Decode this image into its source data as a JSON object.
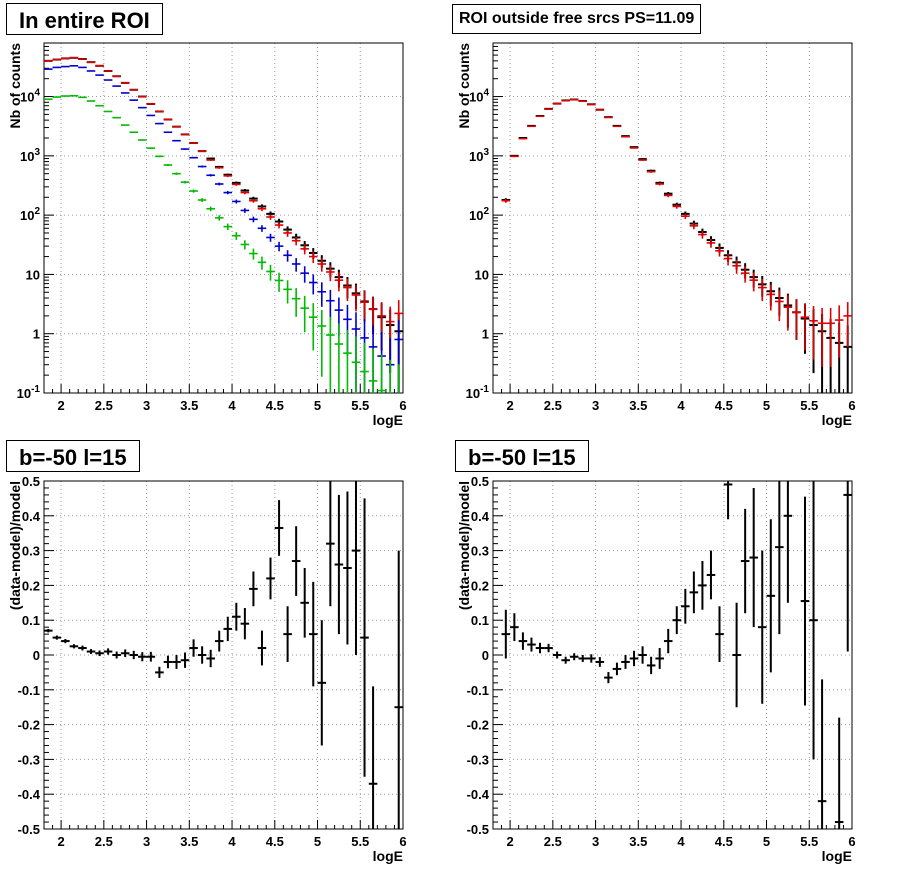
{
  "panels": {
    "top_left": {
      "title": "In entire ROI"
    },
    "top_right": {
      "title": "ROI outside free srcs PS=11.09"
    },
    "bottom_left": {
      "title": "b=-50 l=15"
    },
    "bottom_right": {
      "title": "b=-50 l=15"
    }
  },
  "colors": {
    "black": "#000000",
    "red": "#e00000",
    "blue": "#0000cc",
    "green": "#00bb00",
    "grid": "#999999"
  },
  "chart_data": [
    {
      "id": "top_left",
      "type": "scatter",
      "title": "In entire ROI",
      "xlabel": "logE",
      "ylabel": "Nb of counts",
      "xlim": [
        1.8,
        6.0
      ],
      "ylim": [
        0.1,
        80000
      ],
      "yscale": "log",
      "grid": true,
      "xticks": [
        2,
        2.5,
        3,
        3.5,
        4,
        4.5,
        5,
        5.5,
        6
      ],
      "xtick_labels": [
        "2",
        "2.5",
        "3",
        "3.5",
        "4",
        "4.5",
        "5",
        "5.5",
        "6"
      ],
      "yticks": [
        0.1,
        1,
        10,
        100,
        1000,
        10000
      ],
      "ytick_labels": [
        "10^-1",
        "1",
        "10",
        "10^2",
        "10^3",
        "10^4"
      ],
      "bin_halfwidth": 0.05,
      "x": [
        1.85,
        1.95,
        2.05,
        2.15,
        2.25,
        2.35,
        2.45,
        2.55,
        2.65,
        2.75,
        2.85,
        2.95,
        3.05,
        3.15,
        3.25,
        3.35,
        3.45,
        3.55,
        3.65,
        3.75,
        3.85,
        3.95,
        4.05,
        4.15,
        4.25,
        4.35,
        4.45,
        4.55,
        4.65,
        4.75,
        4.85,
        4.95,
        5.05,
        5.15,
        5.25,
        5.35,
        5.45,
        5.55,
        5.65,
        5.75,
        5.85,
        5.95
      ],
      "series": [
        {
          "color": "black",
          "values": [
            40000,
            42000,
            44000,
            45000,
            43000,
            38000,
            33000,
            27000,
            22000,
            17000,
            13000,
            10000,
            7500,
            5600,
            4100,
            3100,
            2300,
            1650,
            1200,
            900,
            650,
            480,
            350,
            260,
            190,
            140,
            105,
            78,
            57,
            42,
            31,
            23,
            17,
            12.5,
            9,
            6.5,
            4.8,
            3.5,
            2.6,
            1.9,
            1.4,
            1.1
          ],
          "errors": true
        },
        {
          "color": "red",
          "values": [
            40000,
            42000,
            44000,
            45000,
            43000,
            38000,
            33000,
            27000,
            22000,
            17000,
            13000,
            10000,
            7500,
            5600,
            4100,
            3100,
            2300,
            1650,
            1200,
            850,
            630,
            460,
            330,
            240,
            175,
            128,
            93,
            68,
            50,
            37,
            27,
            20,
            15,
            11,
            8,
            6,
            4.5,
            3.4,
            2.6,
            2.0,
            1.6,
            2.2
          ],
          "errors": true
        },
        {
          "color": "blue",
          "values": [
            29000,
            31000,
            32000,
            33000,
            31000,
            27000,
            23000,
            19000,
            15000,
            11500,
            8700,
            6500,
            4800,
            3500,
            2500,
            1800,
            1300,
            930,
            660,
            470,
            335,
            240,
            170,
            120,
            85,
            60,
            42,
            30,
            21,
            15,
            10.5,
            7.3,
            5.1,
            3.6,
            2.5,
            1.75,
            1.2,
            0.85,
            0.6,
            0.42,
            0.3,
            0.8
          ],
          "errors": true
        },
        {
          "color": "green",
          "values": [
            9000,
            9800,
            10200,
            10300,
            9700,
            8400,
            7000,
            5600,
            4400,
            3300,
            2500,
            1850,
            1350,
            980,
            700,
            500,
            360,
            255,
            180,
            128,
            90,
            64,
            45,
            32,
            22.5,
            16,
            11.2,
            7.9,
            5.6,
            3.9,
            2.7,
            1.9,
            1.35,
            0.95,
            0.67,
            0.47,
            0.33,
            0.23,
            0.16,
            0.11,
            0.08,
            0.06
          ],
          "errors": true
        }
      ]
    },
    {
      "id": "top_right",
      "type": "scatter",
      "title": "ROI outside free srcs PS=11.09",
      "xlabel": "logE",
      "ylabel": "Nb of counts",
      "xlim": [
        1.8,
        6.0
      ],
      "ylim": [
        0.1,
        80000
      ],
      "yscale": "log",
      "grid": true,
      "xticks": [
        2,
        2.5,
        3,
        3.5,
        4,
        4.5,
        5,
        5.5,
        6
      ],
      "xtick_labels": [
        "2",
        "2.5",
        "3",
        "3.5",
        "4",
        "4.5",
        "5",
        "5.5",
        "6"
      ],
      "yticks": [
        0.1,
        1,
        10,
        100,
        1000,
        10000
      ],
      "ytick_labels": [
        "10^-1",
        "1",
        "10",
        "10^2",
        "10^3",
        "10^4"
      ],
      "bin_halfwidth": 0.05,
      "x": [
        1.95,
        2.05,
        2.15,
        2.25,
        2.35,
        2.45,
        2.55,
        2.65,
        2.75,
        2.85,
        2.95,
        3.05,
        3.15,
        3.25,
        3.35,
        3.45,
        3.55,
        3.65,
        3.75,
        3.85,
        3.95,
        4.05,
        4.15,
        4.25,
        4.35,
        4.45,
        4.55,
        4.65,
        4.75,
        4.85,
        4.95,
        5.05,
        5.15,
        5.25,
        5.35,
        5.45,
        5.55,
        5.65,
        5.75,
        5.85,
        5.95
      ],
      "series": [
        {
          "color": "black",
          "values": [
            180,
            1000,
            2000,
            3200,
            4700,
            6200,
            7600,
            8600,
            8900,
            8400,
            7400,
            6000,
            4500,
            3200,
            2150,
            1400,
            880,
            560,
            350,
            230,
            150,
            105,
            72,
            52,
            38,
            28,
            21,
            16,
            12,
            9,
            6.8,
            5.2,
            4,
            3,
            2.3,
            1.8,
            1.4,
            1.1,
            0.85,
            0.7,
            0.6
          ],
          "errors": true
        },
        {
          "color": "red",
          "values": [
            175,
            980,
            1950,
            3150,
            4650,
            6150,
            7550,
            8550,
            8850,
            8350,
            7350,
            5950,
            4450,
            3150,
            2100,
            1360,
            850,
            540,
            335,
            215,
            140,
            96,
            66,
            47,
            34,
            25,
            18.5,
            14,
            10.5,
            8,
            6,
            4.6,
            3.5,
            2.8,
            2.3,
            1.9,
            1.65,
            1.5,
            1.5,
            1.7,
            2.0
          ],
          "errors": true
        }
      ]
    },
    {
      "id": "bottom_left",
      "type": "scatter",
      "title": "b=-50 l=15",
      "xlabel": "logE",
      "ylabel": "(data-model)/model",
      "xlim": [
        1.8,
        6.0
      ],
      "ylim": [
        -0.5,
        0.5
      ],
      "yscale": "linear",
      "grid": true,
      "xticks": [
        2,
        2.5,
        3,
        3.5,
        4,
        4.5,
        5,
        5.5,
        6
      ],
      "xtick_labels": [
        "2",
        "2.5",
        "3",
        "3.5",
        "4",
        "4.5",
        "5",
        "5.5",
        "6"
      ],
      "yticks": [
        -0.5,
        -0.4,
        -0.3,
        -0.2,
        -0.1,
        0,
        0.1,
        0.2,
        0.3,
        0.4,
        0.5
      ],
      "ytick_labels": [
        "-0.5",
        "-0.4",
        "-0.3",
        "-0.2",
        "-0.1",
        "0",
        "0.1",
        "0.2",
        "0.3",
        "0.4",
        "0.5"
      ],
      "bin_halfwidth": 0.05,
      "x": [
        1.85,
        1.95,
        2.05,
        2.15,
        2.25,
        2.35,
        2.45,
        2.55,
        2.65,
        2.75,
        2.85,
        2.95,
        3.05,
        3.15,
        3.25,
        3.35,
        3.45,
        3.55,
        3.65,
        3.75,
        3.85,
        3.95,
        4.05,
        4.15,
        4.25,
        4.35,
        4.45,
        4.55,
        4.65,
        4.75,
        4.85,
        4.95,
        5.05,
        5.15,
        5.25,
        5.35,
        5.45,
        5.55,
        5.65,
        5.75,
        5.85,
        5.95
      ],
      "series": [
        {
          "color": "black",
          "values": [
            0.07,
            0.05,
            0.04,
            0.025,
            0.02,
            0.01,
            0.005,
            0.01,
            0.0,
            0.005,
            0.0,
            -0.005,
            -0.005,
            -0.05,
            -0.02,
            -0.02,
            -0.015,
            0.02,
            0.0,
            -0.01,
            0.04,
            0.075,
            0.11,
            0.09,
            0.19,
            0.02,
            0.22,
            0.365,
            0.06,
            0.27,
            0.15,
            0.06,
            -0.08,
            0.32,
            0.26,
            0.25,
            0.3,
            0.05,
            -0.37,
            0.0,
            0.0,
            -0.15
          ],
          "err": [
            0.005,
            0.006,
            0.006,
            0.006,
            0.007,
            0.007,
            0.008,
            0.009,
            0.01,
            0.011,
            0.012,
            0.013,
            0.014,
            0.016,
            0.018,
            0.02,
            0.022,
            0.025,
            0.025,
            0.025,
            0.03,
            0.035,
            0.04,
            0.045,
            0.05,
            0.05,
            0.06,
            0.08,
            0.08,
            0.1,
            0.1,
            0.15,
            0.18,
            0.18,
            0.2,
            0.22,
            0.3,
            0.4,
            0.28,
            0,
            0,
            0.45
          ],
          "show": [
            true,
            true,
            true,
            true,
            true,
            true,
            true,
            true,
            true,
            true,
            true,
            true,
            true,
            true,
            true,
            true,
            true,
            true,
            true,
            true,
            true,
            true,
            true,
            true,
            true,
            true,
            true,
            true,
            true,
            true,
            true,
            true,
            true,
            true,
            true,
            true,
            true,
            true,
            true,
            false,
            false,
            true
          ]
        }
      ]
    },
    {
      "id": "bottom_right",
      "type": "scatter",
      "title": "b=-50 l=15",
      "xlabel": "logE",
      "ylabel": "(data-model)/model",
      "xlim": [
        1.8,
        6.0
      ],
      "ylim": [
        -0.5,
        0.5
      ],
      "yscale": "linear",
      "grid": true,
      "xticks": [
        2,
        2.5,
        3,
        3.5,
        4,
        4.5,
        5,
        5.5,
        6
      ],
      "xtick_labels": [
        "2",
        "2.5",
        "3",
        "3.5",
        "4",
        "4.5",
        "5",
        "5.5",
        "6"
      ],
      "yticks": [
        -0.5,
        -0.4,
        -0.3,
        -0.2,
        -0.1,
        0,
        0.1,
        0.2,
        0.3,
        0.4,
        0.5
      ],
      "ytick_labels": [
        "-0.5",
        "-0.4",
        "-0.3",
        "-0.2",
        "-0.1",
        "0",
        "0.1",
        "0.2",
        "0.3",
        "0.4",
        "0.5"
      ],
      "bin_halfwidth": 0.05,
      "x": [
        1.95,
        2.05,
        2.15,
        2.25,
        2.35,
        2.45,
        2.55,
        2.65,
        2.75,
        2.85,
        2.95,
        3.05,
        3.15,
        3.25,
        3.35,
        3.45,
        3.55,
        3.65,
        3.75,
        3.85,
        3.95,
        4.05,
        4.15,
        4.25,
        4.35,
        4.45,
        4.55,
        4.65,
        4.75,
        4.85,
        4.95,
        5.05,
        5.15,
        5.25,
        5.35,
        5.45,
        5.55,
        5.65,
        5.75,
        5.85,
        5.95
      ],
      "series": [
        {
          "color": "black",
          "values": [
            0.06,
            0.08,
            0.04,
            0.03,
            0.02,
            0.02,
            0.0,
            -0.015,
            -0.005,
            -0.01,
            -0.01,
            -0.02,
            -0.065,
            -0.04,
            -0.02,
            -0.01,
            0.0,
            -0.03,
            -0.01,
            0.04,
            0.1,
            0.14,
            0.18,
            0.2,
            0.23,
            0.06,
            0.49,
            0.0,
            0.27,
            0.28,
            0.08,
            0.17,
            0.31,
            0.4,
            0.0,
            0.155,
            0.1,
            -0.42,
            0.0,
            -0.48,
            0.46
          ],
          "err": [
            0.07,
            0.04,
            0.025,
            0.02,
            0.015,
            0.012,
            0.01,
            0.01,
            0.01,
            0.01,
            0.012,
            0.014,
            0.016,
            0.018,
            0.02,
            0.022,
            0.025,
            0.025,
            0.03,
            0.035,
            0.04,
            0.05,
            0.06,
            0.07,
            0.07,
            0.08,
            0.1,
            0.15,
            0.15,
            0.2,
            0.22,
            0.22,
            0.25,
            0.25,
            0,
            0.3,
            0.4,
            0.35,
            0,
            0.3,
            0.45
          ],
          "show": [
            true,
            true,
            true,
            true,
            true,
            true,
            true,
            true,
            true,
            true,
            true,
            true,
            true,
            true,
            true,
            true,
            true,
            true,
            true,
            true,
            true,
            true,
            true,
            true,
            true,
            true,
            true,
            true,
            true,
            true,
            true,
            true,
            true,
            true,
            false,
            true,
            true,
            true,
            false,
            true,
            true
          ]
        }
      ]
    }
  ]
}
